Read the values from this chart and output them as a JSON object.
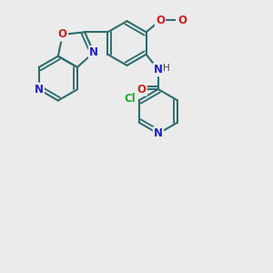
{
  "background_color": "#ebebeb",
  "bond_color": "#2d6e6e",
  "bond_width": 1.5,
  "atom_colors": {
    "N": "#2020cc",
    "O": "#cc2020",
    "Cl": "#20aa20",
    "C": "#2d6e6e",
    "H": "#2d6e6e"
  },
  "font_size": 8.5
}
